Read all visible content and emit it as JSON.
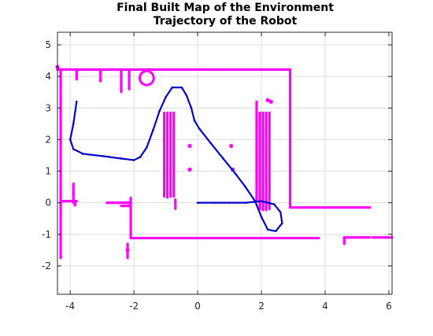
{
  "chart_data": {
    "type": "scatter",
    "title": [
      "Final Built Map of the Environment",
      "Trajectory of the Robot"
    ],
    "xlabel": "",
    "ylabel": "",
    "xlim": [
      -4.4,
      6.1
    ],
    "ylim": [
      -2.9,
      5.4
    ],
    "xticks": [
      -4,
      -2,
      0,
      2,
      4,
      6
    ],
    "yticks": [
      -2,
      -1,
      0,
      1,
      2,
      3,
      4,
      5
    ],
    "grid": true,
    "colors": {
      "map": "#ff00ff",
      "trajectory": "#0000cc"
    },
    "series": [
      {
        "kind": "map",
        "segments": [
          [
            [
              -4.4,
              4.22
            ],
            [
              2.9,
              4.22
            ]
          ],
          [
            [
              2.9,
              4.22
            ],
            [
              2.9,
              -0.15
            ]
          ],
          [
            [
              2.9,
              -0.15
            ],
            [
              5.4,
              -0.15
            ]
          ],
          [
            [
              -4.3,
              4.2
            ],
            [
              -4.3,
              -1.75
            ]
          ],
          [
            [
              -4.3,
              0.05
            ],
            [
              -3.8,
              0.05
            ]
          ],
          [
            [
              -3.85,
              0.05
            ],
            [
              -3.85,
              -0.1
            ]
          ],
          [
            [
              -3.8,
              4.2
            ],
            [
              -3.8,
              3.9
            ]
          ],
          [
            [
              -3.05,
              4.2
            ],
            [
              -3.05,
              3.85
            ]
          ],
          [
            [
              -2.15,
              4.2
            ],
            [
              -2.15,
              3.6
            ]
          ],
          [
            [
              -2.4,
              -0.1
            ],
            [
              -2.1,
              -0.1
            ]
          ],
          [
            [
              -2.4,
              4.2
            ],
            [
              -2.4,
              3.5
            ]
          ],
          [
            [
              -3.9,
              0.6
            ],
            [
              -3.9,
              0.0
            ]
          ],
          [
            [
              -2.85,
              0.0
            ],
            [
              -2.1,
              0.0
            ]
          ],
          [
            [
              -2.1,
              0.15
            ],
            [
              -2.1,
              -1.12
            ]
          ],
          [
            [
              -2.1,
              -1.12
            ],
            [
              3.8,
              -1.12
            ]
          ],
          [
            [
              -2.2,
              -1.3
            ],
            [
              -2.2,
              -1.75
            ]
          ],
          [
            [
              4.6,
              -1.1
            ],
            [
              4.6,
              -1.3
            ]
          ],
          [
            [
              4.6,
              -1.1
            ],
            [
              5.4,
              -1.1
            ]
          ],
          [
            [
              5.5,
              -1.1
            ],
            [
              6.1,
              -1.1
            ]
          ],
          [
            [
              -1.05,
              2.85
            ],
            [
              -1.05,
              0.2
            ]
          ],
          [
            [
              -0.95,
              2.85
            ],
            [
              -0.95,
              0.15
            ]
          ],
          [
            [
              -0.85,
              2.85
            ],
            [
              -0.85,
              0.2
            ]
          ],
          [
            [
              -0.75,
              2.85
            ],
            [
              -0.75,
              0.2
            ]
          ],
          [
            [
              -0.7,
              0.1
            ],
            [
              -0.7,
              -0.2
            ]
          ],
          [
            [
              1.85,
              3.2
            ],
            [
              1.85,
              0.05
            ]
          ],
          [
            [
              1.95,
              2.85
            ],
            [
              1.95,
              -0.2
            ]
          ],
          [
            [
              2.05,
              2.85
            ],
            [
              2.05,
              -0.25
            ]
          ],
          [
            [
              2.15,
              2.85
            ],
            [
              2.15,
              -0.25
            ]
          ],
          [
            [
              2.25,
              2.85
            ],
            [
              2.25,
              -0.2
            ]
          ]
        ],
        "points": [
          [
            -0.25,
            1.8
          ],
          [
            -0.25,
            1.05
          ],
          [
            1.05,
            1.8
          ],
          [
            1.1,
            1.05
          ],
          [
            2.2,
            3.25
          ],
          [
            2.3,
            3.2
          ],
          [
            -4.4,
            4.3
          ],
          [
            -2.2,
            -1.5
          ]
        ],
        "circle": {
          "center": [
            -1.6,
            3.95
          ],
          "radius": 0.22
        }
      },
      {
        "kind": "trajectory",
        "points": [
          [
            -3.8,
            3.2
          ],
          [
            -3.9,
            2.5
          ],
          [
            -4.0,
            2.0
          ],
          [
            -3.9,
            1.7
          ],
          [
            -3.6,
            1.55
          ],
          [
            -3.0,
            1.48
          ],
          [
            -2.4,
            1.4
          ],
          [
            -2.0,
            1.35
          ],
          [
            -1.8,
            1.45
          ],
          [
            -1.6,
            1.75
          ],
          [
            -1.4,
            2.3
          ],
          [
            -1.2,
            2.9
          ],
          [
            -1.0,
            3.35
          ],
          [
            -0.8,
            3.65
          ],
          [
            -0.5,
            3.65
          ],
          [
            -0.35,
            3.4
          ],
          [
            -0.2,
            3.0
          ],
          [
            -0.1,
            2.6
          ],
          [
            0.05,
            2.35
          ],
          [
            0.4,
            1.9
          ],
          [
            0.8,
            1.4
          ],
          [
            1.2,
            0.9
          ],
          [
            1.5,
            0.5
          ],
          [
            1.8,
            0.05
          ],
          [
            2.0,
            -0.45
          ],
          [
            2.2,
            -0.85
          ],
          [
            2.45,
            -0.9
          ],
          [
            2.65,
            -0.65
          ],
          [
            2.6,
            -0.3
          ],
          [
            2.4,
            -0.05
          ],
          [
            2.0,
            0.05
          ],
          [
            1.5,
            0.0
          ],
          [
            1.0,
            0.0
          ],
          [
            0.5,
            0.0
          ],
          [
            0.0,
            0.0
          ]
        ]
      }
    ]
  }
}
